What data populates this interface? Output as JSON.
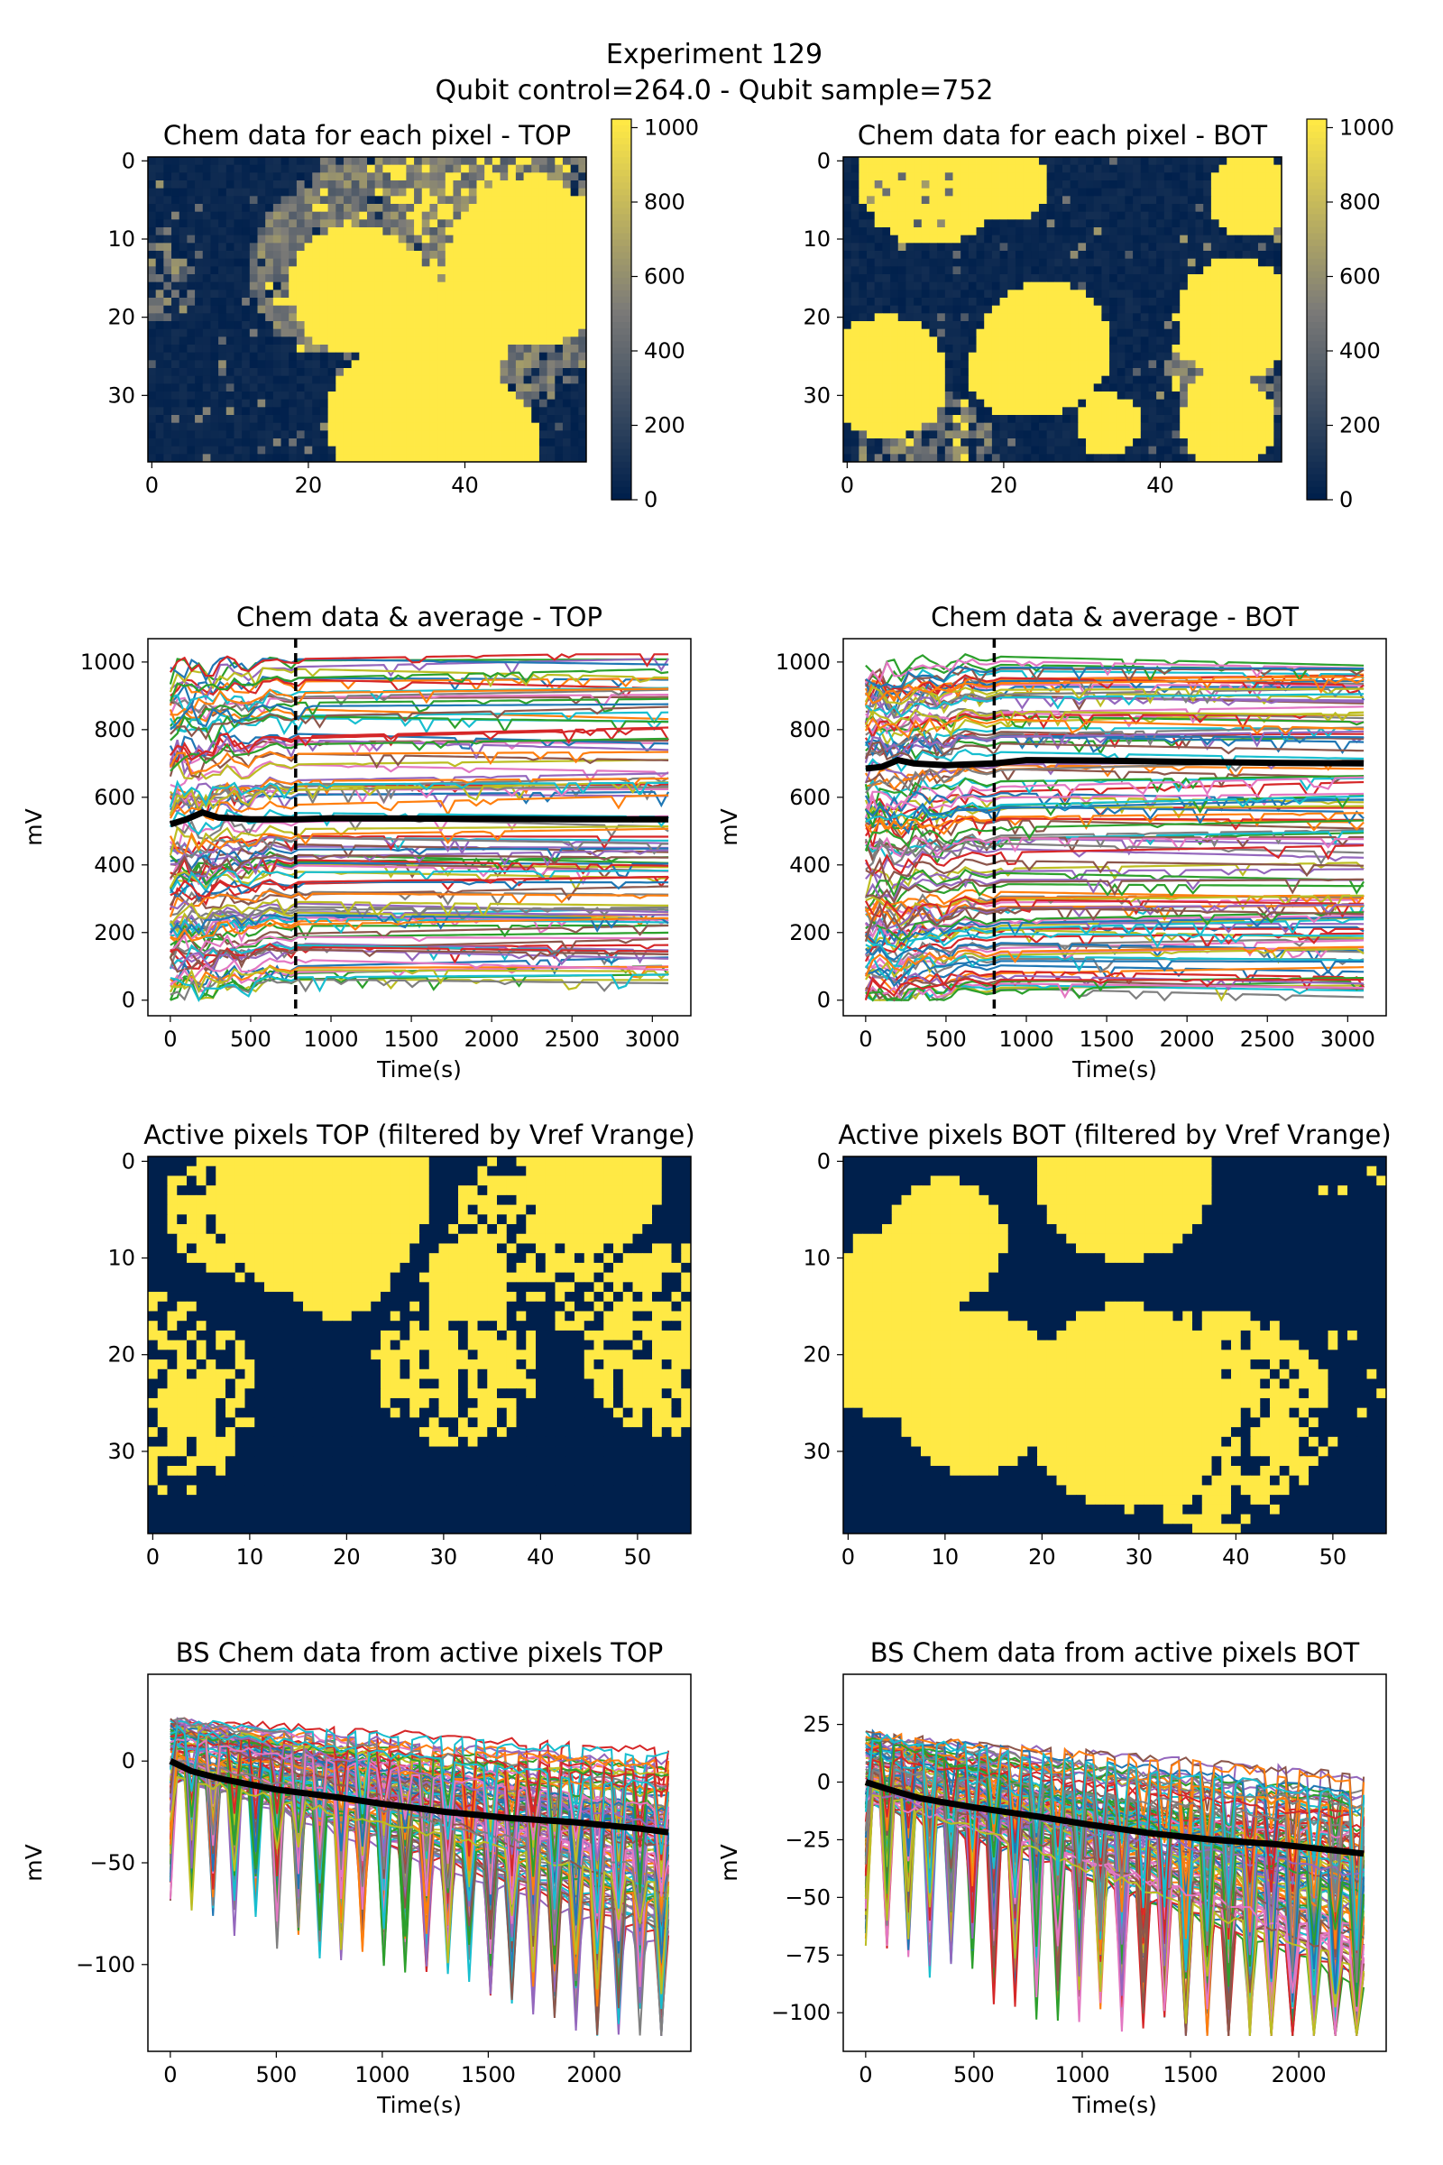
{
  "figure": {
    "title_line1": "Experiment 129",
    "title_line2": "Qubit control=264.0 - Qubit sample=752"
  },
  "colors": {
    "heatmap_low": "#00204c",
    "heatmap_mid": "#7c7b78",
    "heatmap_high": "#ffe945",
    "average_line": "#000000",
    "marker_line": "#000000",
    "series_palette": [
      "#1f77b4",
      "#ff7f0e",
      "#2ca02c",
      "#d62728",
      "#9467bd",
      "#8c564b",
      "#e377c2",
      "#7f7f7f",
      "#bcbd22",
      "#17becf"
    ]
  },
  "chart_data": [
    {
      "id": "heat_top",
      "type": "heatmap",
      "title": "Chem data for each pixel - TOP",
      "rows": 39,
      "cols": 56,
      "xlim": [
        0,
        55
      ],
      "ylim": [
        0,
        38
      ],
      "x_ticks": [
        "0",
        "20",
        "40"
      ],
      "y_ticks": [
        "0",
        "10",
        "20",
        "30"
      ],
      "colorbar_ticks": [
        "0",
        "200",
        "400",
        "600",
        "800",
        "1000"
      ],
      "colorbar_range": [
        0,
        1023
      ],
      "colormap": "cividis",
      "seed": 11,
      "yellow_fraction": 0.45,
      "mid_fraction": 0.25
    },
    {
      "id": "heat_bot",
      "type": "heatmap",
      "title": "Chem data for each pixel - BOT",
      "rows": 39,
      "cols": 56,
      "xlim": [
        0,
        55
      ],
      "ylim": [
        0,
        38
      ],
      "x_ticks": [
        "0",
        "20",
        "40"
      ],
      "y_ticks": [
        "0",
        "10",
        "20",
        "30"
      ],
      "colorbar_ticks": [
        "0",
        "200",
        "400",
        "600",
        "800",
        "1000"
      ],
      "colorbar_range": [
        0,
        1023
      ],
      "colormap": "cividis",
      "seed": 23,
      "yellow_fraction": 0.5,
      "mid_fraction": 0.2
    },
    {
      "id": "avg_top",
      "type": "line",
      "title": "Chem data & average - TOP",
      "xlabel": "Time(s)",
      "ylabel": "mV",
      "xlim": [
        0,
        3100
      ],
      "ylim": [
        0,
        1023
      ],
      "x_ticks": [
        "0",
        "500",
        "1000",
        "1500",
        "2000",
        "2500",
        "3000"
      ],
      "y_ticks": [
        "0",
        "200",
        "400",
        "600",
        "800",
        "1000"
      ],
      "vline_x": 780,
      "average": {
        "x": [
          0,
          100,
          200,
          300,
          500,
          780,
          1000,
          1500,
          2000,
          2500,
          3100
        ],
        "y": [
          520,
          535,
          555,
          540,
          535,
          535,
          538,
          537,
          536,
          535,
          535
        ]
      },
      "level_groups": [
        {
          "range": [
            880,
            1020
          ],
          "count": 14
        },
        {
          "range": [
            600,
            880
          ],
          "count": 30
        },
        {
          "range": [
            380,
            600
          ],
          "count": 22
        },
        {
          "range": [
            180,
            380
          ],
          "count": 26
        },
        {
          "range": [
            60,
            180
          ],
          "count": 18
        }
      ],
      "seed": 5
    },
    {
      "id": "avg_bot",
      "type": "line",
      "title": "Chem data & average - BOT",
      "xlabel": "Time(s)",
      "ylabel": "mV",
      "xlim": [
        0,
        3100
      ],
      "ylim": [
        0,
        1023
      ],
      "x_ticks": [
        "0",
        "500",
        "1000",
        "1500",
        "2000",
        "2500",
        "3000"
      ],
      "y_ticks": [
        "0",
        "200",
        "400",
        "600",
        "800",
        "1000"
      ],
      "vline_x": 800,
      "average": {
        "x": [
          0,
          100,
          200,
          300,
          500,
          800,
          1000,
          1500,
          2000,
          2500,
          3100
        ],
        "y": [
          685,
          690,
          710,
          700,
          695,
          700,
          710,
          708,
          705,
          702,
          700
        ]
      },
      "level_groups": [
        {
          "range": [
            880,
            1020
          ],
          "count": 22
        },
        {
          "range": [
            600,
            880
          ],
          "count": 30
        },
        {
          "range": [
            380,
            600
          ],
          "count": 24
        },
        {
          "range": [
            150,
            380
          ],
          "count": 30
        },
        {
          "range": [
            20,
            150
          ],
          "count": 18
        }
      ],
      "seed": 9
    },
    {
      "id": "active_top",
      "type": "heatmap",
      "title": "Active pixels TOP (filtered by Vref Vrange)",
      "rows": 39,
      "cols": 56,
      "xlim": [
        0,
        55
      ],
      "ylim": [
        0,
        38
      ],
      "x_ticks": [
        "0",
        "10",
        "20",
        "30",
        "40",
        "50"
      ],
      "y_ticks": [
        "0",
        "10",
        "20",
        "30"
      ],
      "colormap": "binary-cividis",
      "seed": 31,
      "yellow_fraction": 0.3
    },
    {
      "id": "active_bot",
      "type": "heatmap",
      "title": "Active pixels BOT (filtered by Vref Vrange)",
      "rows": 39,
      "cols": 56,
      "xlim": [
        0,
        55
      ],
      "ylim": [
        0,
        38
      ],
      "x_ticks": [
        "0",
        "10",
        "20",
        "30",
        "40",
        "50"
      ],
      "y_ticks": [
        "0",
        "10",
        "20",
        "30"
      ],
      "colormap": "binary-cividis",
      "seed": 41,
      "yellow_fraction": 0.25
    },
    {
      "id": "bs_top",
      "type": "line",
      "title": "BS Chem data from active pixels TOP",
      "xlabel": "Time(s)",
      "ylabel": "mV",
      "xlim": [
        0,
        2350
      ],
      "ylim": [
        -135,
        35
      ],
      "x_ticks": [
        "0",
        "500",
        "1000",
        "1500",
        "2000"
      ],
      "y_ticks": [
        "−100",
        "−50",
        "0"
      ],
      "average": {
        "x": [
          0,
          100,
          250,
          500,
          800,
          1000,
          1300,
          1600,
          1900,
          2200,
          2350
        ],
        "y": [
          0,
          -5,
          -9,
          -14,
          -18,
          -21,
          -25,
          -28,
          -30,
          -33,
          -35
        ]
      },
      "seed": 17
    },
    {
      "id": "bs_bot",
      "type": "line",
      "title": "BS Chem data from active pixels BOT",
      "xlabel": "Time(s)",
      "ylabel": "mV",
      "xlim": [
        0,
        2300
      ],
      "ylim": [
        -110,
        40
      ],
      "x_ticks": [
        "0",
        "500",
        "1000",
        "1500",
        "2000"
      ],
      "y_ticks": [
        "−100",
        "−75",
        "−50",
        "−25",
        "0",
        "25"
      ],
      "average": {
        "x": [
          0,
          100,
          250,
          500,
          800,
          1000,
          1300,
          1600,
          1900,
          2200,
          2300
        ],
        "y": [
          0,
          -3,
          -7,
          -11,
          -15,
          -18,
          -22,
          -25,
          -27,
          -30,
          -31
        ]
      },
      "seed": 29
    }
  ]
}
